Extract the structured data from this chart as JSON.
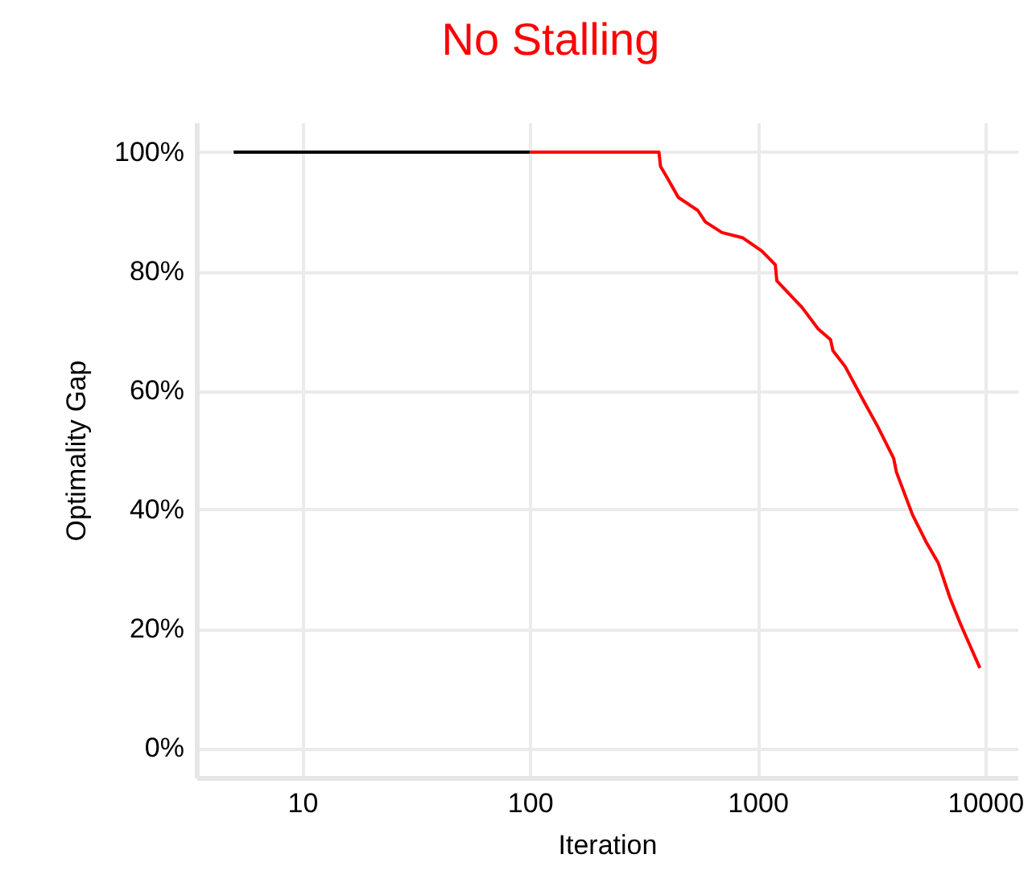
{
  "chart_data": {
    "type": "line",
    "title": "No Stalling",
    "xlabel": "Iteration",
    "ylabel": "Optimality Gap",
    "log": "x",
    "grid": true,
    "xlim": [
      3.43,
      13870
    ],
    "xticks": [
      10,
      100,
      1000,
      10000
    ],
    "ylim": [
      -5,
      105
    ],
    "yticks": [
      {
        "value": 0,
        "label": "0%"
      },
      {
        "value": 20,
        "label": "20%"
      },
      {
        "value": 40,
        "label": "40%"
      },
      {
        "value": 60,
        "label": "60%"
      },
      {
        "value": 80,
        "label": "80%"
      },
      {
        "value": 100,
        "label": "100%"
      }
    ],
    "series": [
      {
        "color": "#000000",
        "x": [
          5,
          100
        ],
        "values": [
          100,
          100
        ]
      },
      {
        "color": "#ff0000",
        "x": [
          100,
          369,
          375,
          401,
          449,
          547,
          590,
          698,
          863,
          1045,
          1197,
          1216,
          1571,
          1849,
          2094,
          2143,
          2427,
          2937,
          3366,
          3963,
          4074,
          4797,
          5495,
          6227,
          7015,
          7828,
          9480
        ],
        "values": [
          100,
          100,
          97.6,
          95.7,
          92.4,
          90.2,
          88.3,
          86.5,
          85.6,
          83.4,
          81.1,
          78.4,
          73.9,
          70.3,
          68.5,
          66.7,
          64.0,
          58.1,
          54.0,
          48.6,
          46.3,
          39.1,
          34.6,
          31.0,
          25.1,
          20.6,
          13.4
        ]
      }
    ]
  }
}
